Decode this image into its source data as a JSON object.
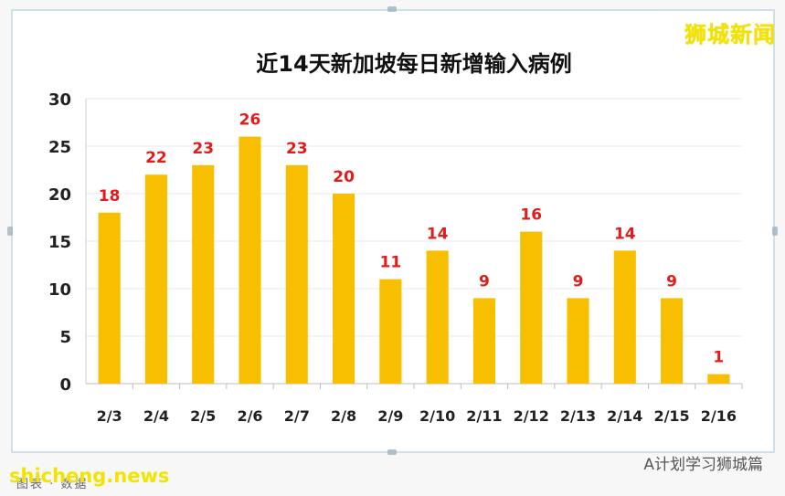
{
  "brand": {
    "top_right": "狮城新闻",
    "bottom_left": "shicheng.news",
    "bottom_right": "A计划学习狮城篇",
    "footer_note": "图表 · 数据"
  },
  "colors": {
    "bar": "#f7bf00",
    "label": "#e41b1b",
    "axis": "#222222",
    "grid": "#e8e8e8"
  },
  "chart_data": {
    "type": "bar",
    "title": "近14天新加坡每日新增输入病例",
    "categories": [
      "2/3",
      "2/4",
      "2/5",
      "2/6",
      "2/7",
      "2/8",
      "2/9",
      "2/10",
      "2/11",
      "2/12",
      "2/13",
      "2/14",
      "2/15",
      "2/16"
    ],
    "values": [
      18,
      22,
      23,
      26,
      23,
      20,
      11,
      14,
      9,
      16,
      9,
      14,
      9,
      1
    ],
    "ylim": [
      0,
      30
    ],
    "yticks": [
      0,
      5,
      10,
      15,
      20,
      25,
      30
    ],
    "grid": true,
    "legend": "none",
    "data_labels": true
  }
}
